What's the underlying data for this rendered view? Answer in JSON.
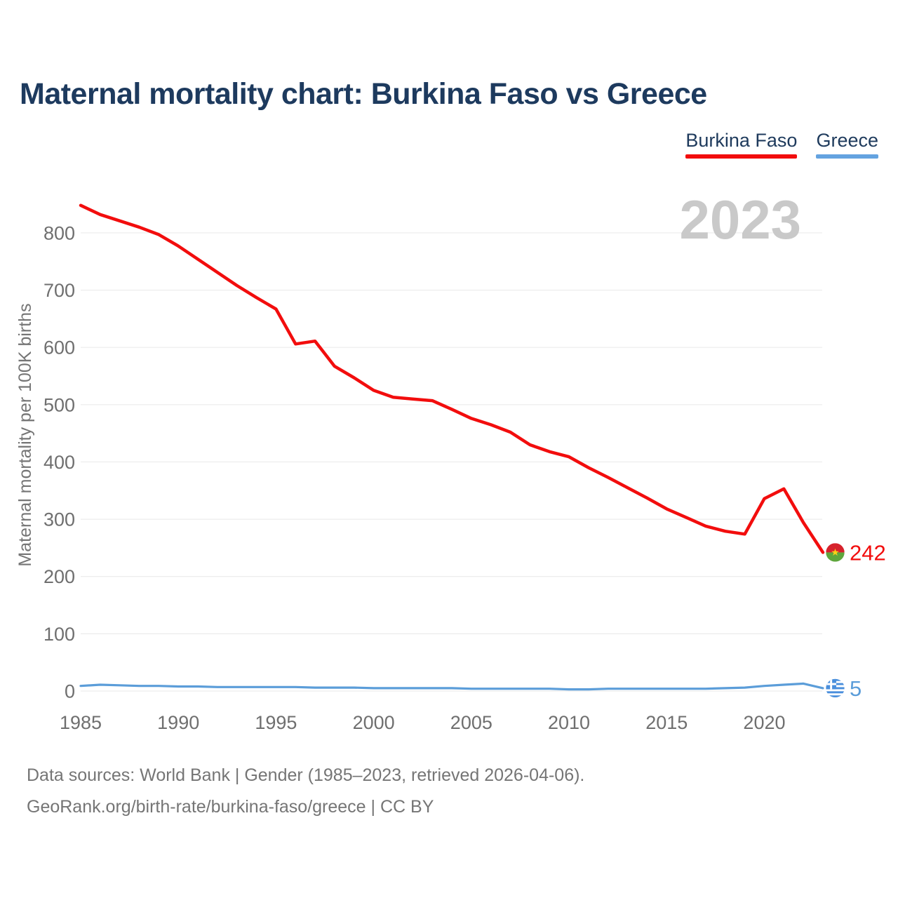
{
  "title": "Maternal mortality chart: Burkina Faso vs Greece",
  "legend": {
    "items": [
      {
        "label": "Burkina Faso",
        "color": "#f20d0d"
      },
      {
        "label": "Greece",
        "color": "#64a3e0"
      }
    ]
  },
  "footer": {
    "line1": "Data sources: World Bank | Gender (1985–2023, retrieved 2026-04-06).",
    "line2": "GeoRank.org/birth-rate/burkina-faso/greece | CC BY"
  },
  "chart_data": {
    "type": "line",
    "title": "Maternal mortality chart: Burkina Faso vs Greece",
    "watermark": "2023",
    "ylabel": "Maternal mortality per 100K births",
    "xlabel": "",
    "ylim": [
      0,
      870
    ],
    "grid": true,
    "legend_position": "top-right",
    "yticks": [
      0,
      100,
      200,
      300,
      400,
      500,
      600,
      700,
      800
    ],
    "xticks": [
      1985,
      1990,
      1995,
      2000,
      2005,
      2010,
      2015,
      2020
    ],
    "x": [
      1985,
      1986,
      1987,
      1988,
      1989,
      1990,
      1991,
      1992,
      1993,
      1994,
      1995,
      1996,
      1997,
      1998,
      1999,
      2000,
      2001,
      2002,
      2003,
      2004,
      2005,
      2006,
      2007,
      2008,
      2009,
      2010,
      2011,
      2012,
      2013,
      2014,
      2015,
      2016,
      2017,
      2018,
      2019,
      2020,
      2021,
      2022,
      2023
    ],
    "series": [
      {
        "name": "Burkina Faso",
        "color": "#f20d0d",
        "end_label": "242",
        "flag_icon": "burkina-faso-flag-icon",
        "flag_colors": {
          "red": "#d6222c",
          "green": "#5ea63c",
          "yellow": "#fcd116"
        },
        "values": [
          848,
          832,
          821,
          810,
          797,
          777,
          754,
          731,
          708,
          687,
          667,
          606,
          611,
          567,
          547,
          525,
          513,
          510,
          507,
          492,
          476,
          465,
          452,
          430,
          418,
          409,
          390,
          373,
          355,
          337,
          318,
          303,
          288,
          279,
          274,
          336,
          353,
          294,
          242
        ]
      },
      {
        "name": "Greece",
        "color": "#5b9dd9",
        "end_label": "5",
        "flag_icon": "greece-flag-icon",
        "flag_colors": {
          "blue": "#4a8fdc",
          "white": "#ffffff"
        },
        "values": [
          9,
          11,
          10,
          9,
          9,
          8,
          8,
          7,
          7,
          7,
          7,
          7,
          6,
          6,
          6,
          5,
          5,
          5,
          5,
          5,
          4,
          4,
          4,
          4,
          4,
          3,
          3,
          4,
          4,
          4,
          4,
          4,
          4,
          5,
          6,
          9,
          11,
          13,
          5
        ]
      }
    ]
  }
}
